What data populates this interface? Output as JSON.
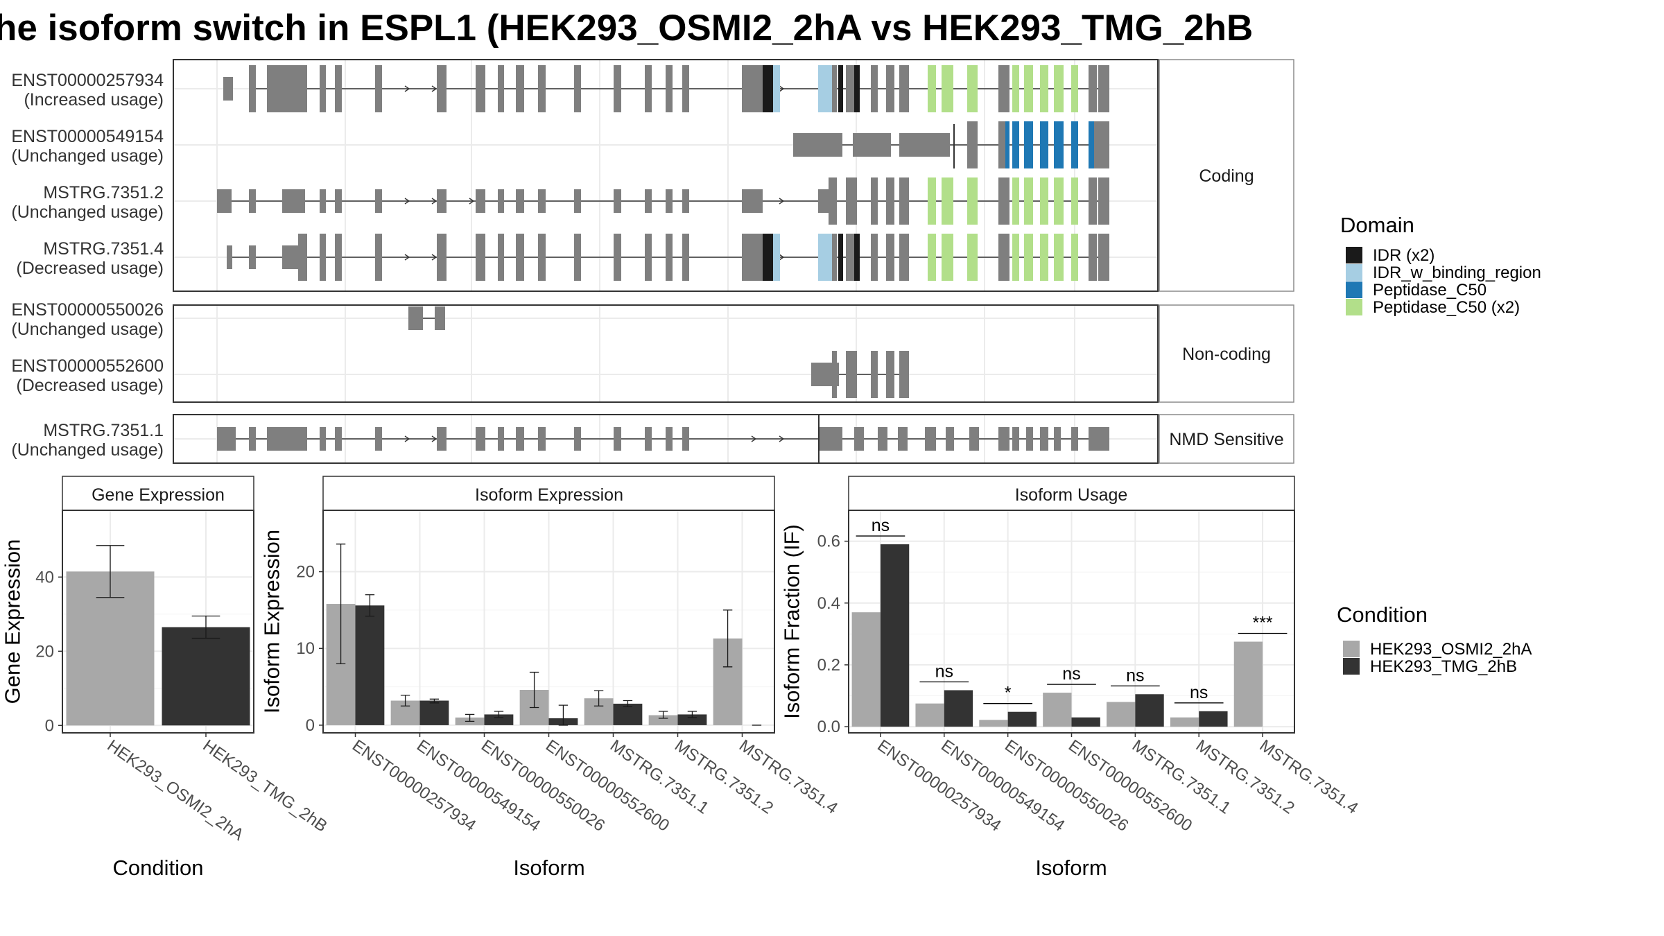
{
  "title": "he isoform switch in ESPL1 (HEK293_OSMI2_2hA vs HEK293_TMG_2hB",
  "colors": {
    "exon": "#7f7f7f",
    "condition_a": "#a8a8a8",
    "condition_b": "#333333",
    "domains": {
      "IDR (x2)": "#1a1a1a",
      "IDR_w_binding_region": "#a6cee3",
      "Peptidase_C50": "#1f78b4",
      "Peptidase_C50 (x2)": "#b2df8a"
    }
  },
  "gene_structure": {
    "facets": [
      {
        "name": "Coding",
        "transcripts": [
          {
            "id": "ENST00000257934",
            "usage": "(Increased usage)"
          },
          {
            "id": "ENST00000549154",
            "usage": "(Unchanged usage)"
          },
          {
            "id": "MSTRG.7351.2",
            "usage": "(Unchanged usage)"
          },
          {
            "id": "MSTRG.7351.4",
            "usage": "(Decreased usage)"
          }
        ]
      },
      {
        "name": "Non-coding",
        "transcripts": [
          {
            "id": "ENST00000550026",
            "usage": "(Unchanged usage)"
          },
          {
            "id": "ENST00000552600",
            "usage": "(Decreased usage)"
          }
        ]
      },
      {
        "name": "NMD Sensitive",
        "transcripts": [
          {
            "id": "MSTRG.7351.1",
            "usage": "(Unchanged usage)"
          }
        ]
      }
    ],
    "domain_legend": {
      "title": "Domain",
      "items": [
        "IDR (x2)",
        "IDR_w_binding_region",
        "Peptidase_C50",
        "Peptidase_C50 (x2)"
      ]
    }
  },
  "chart_data": [
    {
      "type": "bar",
      "panel": "Gene Expression",
      "categories": [
        "HEK293_OSMI2_2hA",
        "HEK293_TMG_2hB"
      ],
      "values": [
        41.5,
        26.5
      ],
      "error": [
        [
          34.5,
          48.5
        ],
        [
          23.5,
          29.5
        ]
      ],
      "xlabel": "Condition",
      "ylabel": "Gene Expression",
      "ylim": [
        -2,
        58
      ],
      "yticks": [
        0,
        20,
        40
      ],
      "grid": true
    },
    {
      "type": "bar",
      "panel": "Isoform Expression",
      "categories": [
        "ENST00000257934",
        "ENST00000549154",
        "ENST00000550026",
        "ENST00000552600",
        "MSTRG.7351.1",
        "MSTRG.7351.2",
        "MSTRG.7351.4"
      ],
      "series": [
        {
          "name": "HEK293_OSMI2_2hA",
          "values": [
            15.8,
            3.2,
            1.0,
            4.6,
            3.5,
            1.3,
            11.3
          ],
          "error": [
            [
              8.0,
              23.6
            ],
            [
              2.5,
              3.9
            ],
            [
              0.5,
              1.4
            ],
            [
              2.3,
              6.9
            ],
            [
              2.5,
              4.5
            ],
            [
              0.9,
              1.8
            ],
            [
              7.6,
              15.0
            ]
          ]
        },
        {
          "name": "HEK293_TMG_2hB",
          "values": [
            15.6,
            3.2,
            1.4,
            0.9,
            2.8,
            1.4,
            0.0
          ],
          "error": [
            [
              14.2,
              17.0
            ],
            [
              2.9,
              3.4
            ],
            [
              1.0,
              1.8
            ],
            [
              0.0,
              2.6
            ],
            [
              2.4,
              3.2
            ],
            [
              1.0,
              1.8
            ],
            [
              0.0,
              0.0
            ]
          ]
        }
      ],
      "xlabel": "Isoform",
      "ylabel": "Isoform Expression",
      "ylim": [
        -1,
        28
      ],
      "yticks": [
        0,
        10,
        20
      ],
      "grid": true
    },
    {
      "type": "bar",
      "panel": "Isoform Usage",
      "categories": [
        "ENST00000257934",
        "ENST00000549154",
        "ENST00000550026",
        "ENST00000552600",
        "MSTRG.7351.1",
        "MSTRG.7351.2",
        "MSTRG.7351.4"
      ],
      "series": [
        {
          "name": "HEK293_OSMI2_2hA",
          "values": [
            0.37,
            0.075,
            0.022,
            0.11,
            0.08,
            0.03,
            0.275
          ]
        },
        {
          "name": "HEK293_TMG_2hB",
          "values": [
            0.59,
            0.118,
            0.048,
            0.03,
            0.105,
            0.05,
            0.0
          ]
        }
      ],
      "significance": [
        "ns",
        "ns",
        "*",
        "ns",
        "ns",
        "ns",
        "***"
      ],
      "xlabel": "Isoform",
      "ylabel": "Isoform Fraction (IF)",
      "ylim": [
        -0.02,
        0.7
      ],
      "yticks": [
        0.0,
        0.2,
        0.4,
        0.6
      ],
      "ytick_labels": [
        "0.0",
        "0.2",
        "0.4",
        "0.6"
      ],
      "grid": true
    }
  ],
  "condition_legend": {
    "title": "Condition",
    "items": [
      "HEK293_OSMI2_2hA",
      "HEK293_TMG_2hB"
    ]
  }
}
